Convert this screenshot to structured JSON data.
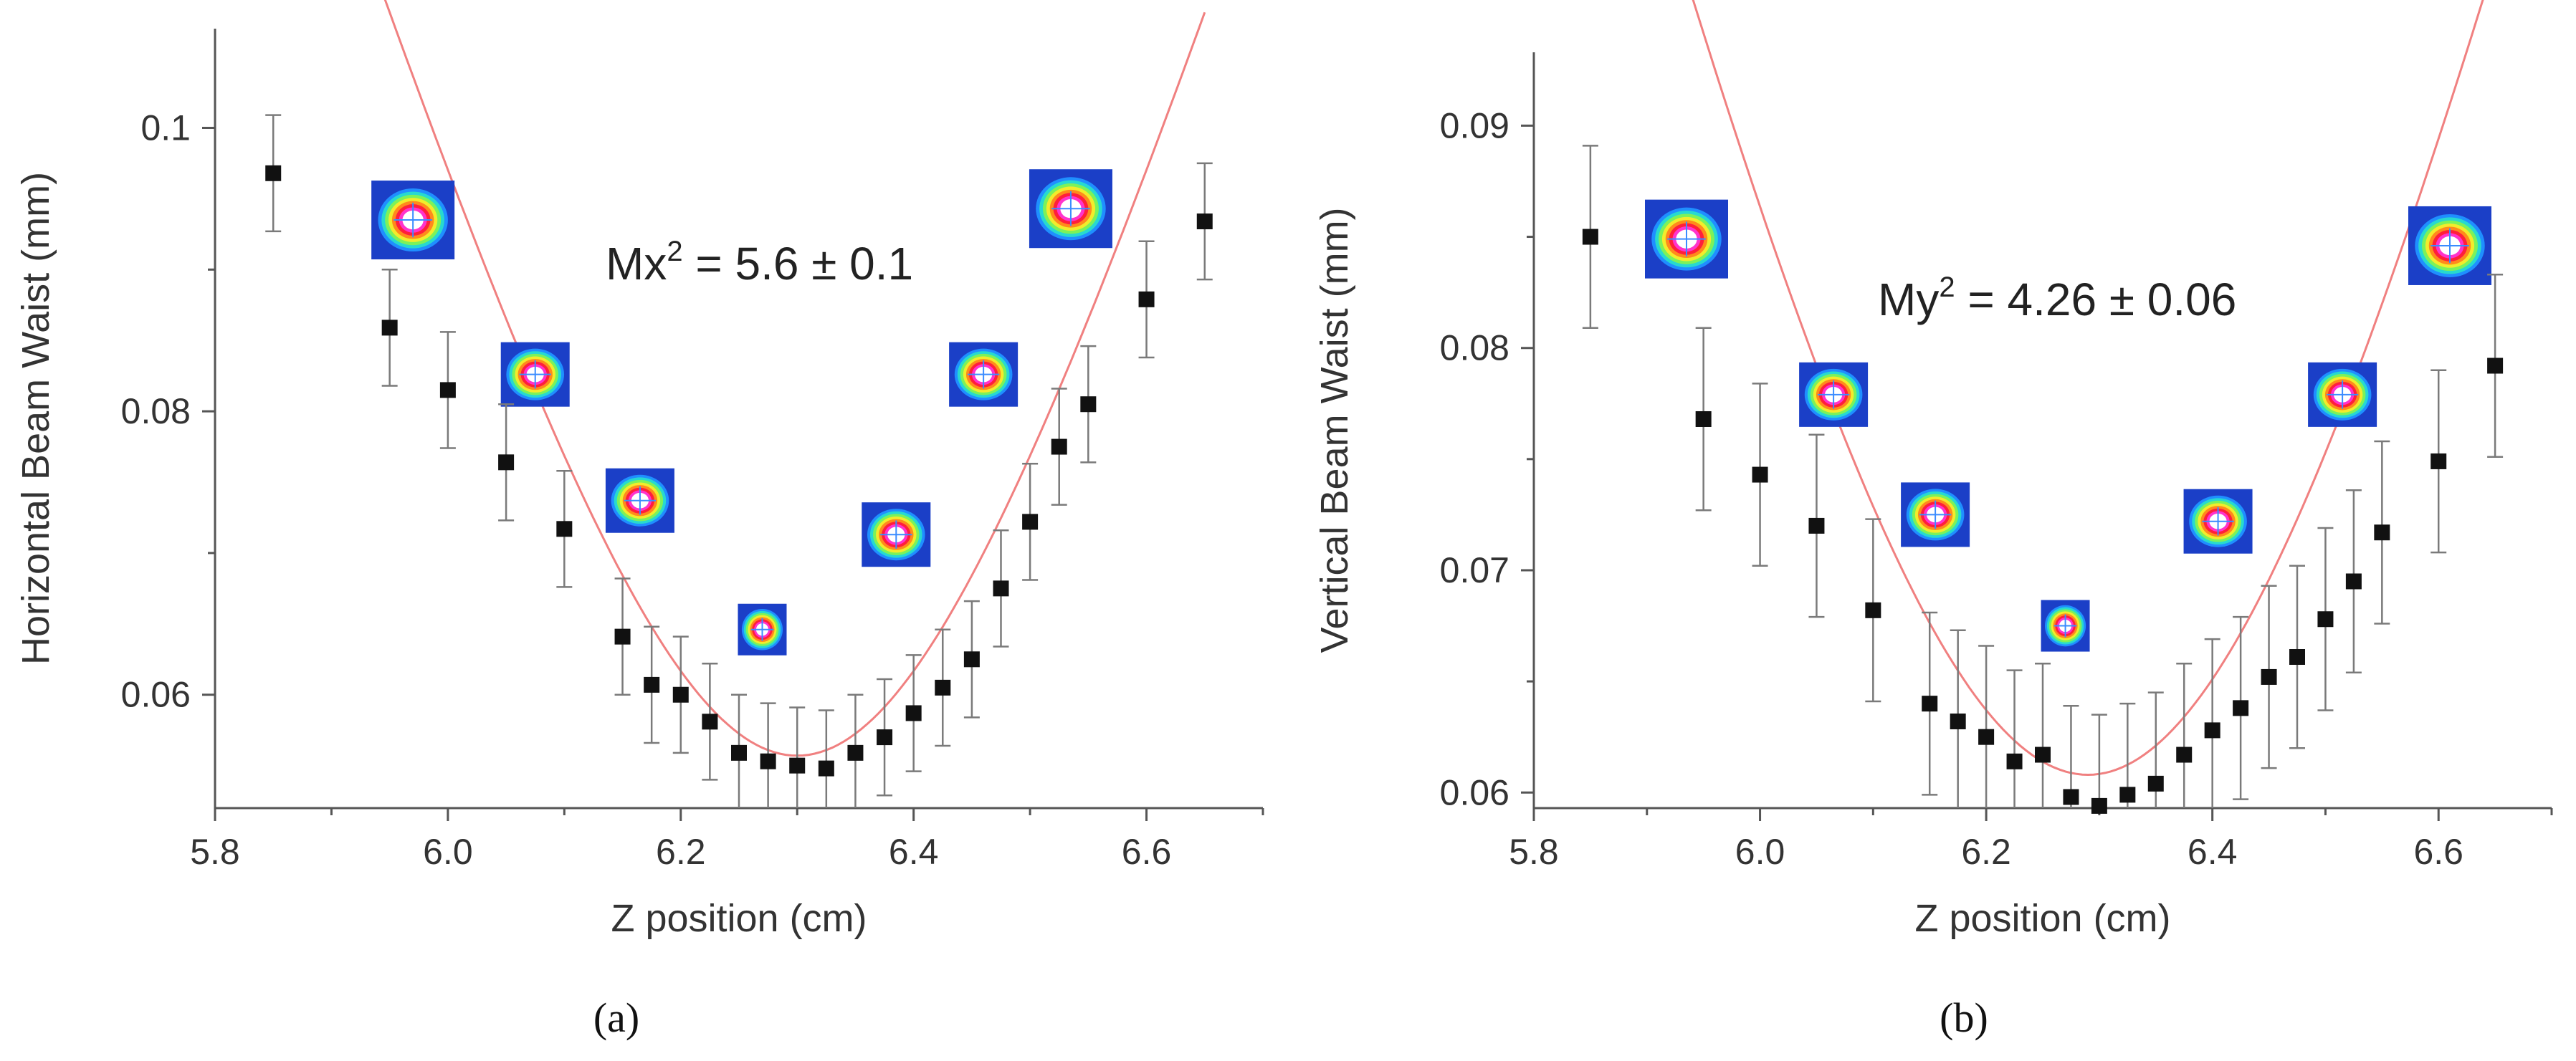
{
  "chart_data": [
    {
      "type": "scatter",
      "panel_label": "(a)",
      "title": "",
      "xlabel": "Z position (cm)",
      "ylabel": "Horizontal Beam Waist (mm)",
      "annotation_prefix": "Mx",
      "annotation_suffix": " = 5.6 ± 0.1",
      "annotation_sup": "2",
      "xlim": [
        5.8,
        6.7
      ],
      "ylim": [
        0.052,
        0.107
      ],
      "x_ticks": [
        5.8,
        6.0,
        6.2,
        6.4,
        6.6
      ],
      "x_ticklabels": [
        "5.8",
        "6.0",
        "6.2",
        "6.4",
        "6.6"
      ],
      "x_minor_ticks": [
        5.9,
        6.1,
        6.3,
        6.5,
        6.7
      ],
      "y_ticks": [
        0.06,
        0.08,
        0.1
      ],
      "y_ticklabels": [
        "0.06",
        "0.08",
        "0.1"
      ],
      "y_minor_ticks": [
        0.07,
        0.09
      ],
      "series": [
        {
          "name": "Measured",
          "x": [
            5.85,
            5.95,
            6.0,
            6.05,
            6.1,
            6.15,
            6.175,
            6.2,
            6.225,
            6.25,
            6.275,
            6.3,
            6.325,
            6.35,
            6.375,
            6.4,
            6.425,
            6.45,
            6.475,
            6.5,
            6.525,
            6.55,
            6.6,
            6.65
          ],
          "y": [
            0.0968,
            0.0859,
            0.0815,
            0.0764,
            0.0717,
            0.0641,
            0.0607,
            0.06,
            0.0581,
            0.0559,
            0.0553,
            0.055,
            0.0548,
            0.0559,
            0.057,
            0.0587,
            0.0605,
            0.0625,
            0.0675,
            0.0722,
            0.0775,
            0.0805,
            0.0879,
            0.0934
          ],
          "error": [
            0.0041,
            0.0041,
            0.0041,
            0.0041,
            0.0041,
            0.0041,
            0.0041,
            0.0041,
            0.0041,
            0.0041,
            0.0041,
            0.0041,
            0.0041,
            0.0041,
            0.0041,
            0.0041,
            0.0041,
            0.0041,
            0.0041,
            0.0041,
            0.0041,
            0.0041,
            0.0041,
            0.0041
          ]
        },
        {
          "name": "Fit",
          "x_range": [
            5.85,
            6.65
          ],
          "model": "hyperbolic",
          "w0": 0.0557,
          "z0": 6.3,
          "zr": 0.2103
        }
      ],
      "insets": [
        {
          "x": 5.97,
          "y": 0.0935,
          "size": "large"
        },
        {
          "x": 6.075,
          "y": 0.0826,
          "size": "medium"
        },
        {
          "x": 6.165,
          "y": 0.0737,
          "size": "medium"
        },
        {
          "x": 6.27,
          "y": 0.0646,
          "size": "small"
        },
        {
          "x": 6.385,
          "y": 0.0713,
          "size": "medium"
        },
        {
          "x": 6.46,
          "y": 0.0826,
          "size": "medium"
        },
        {
          "x": 6.535,
          "y": 0.0943,
          "size": "large"
        }
      ]
    },
    {
      "type": "scatter",
      "panel_label": "(b)",
      "title": "",
      "xlabel": "Z position (cm)",
      "ylabel": "Vertical Beam Waist (mm)",
      "annotation_prefix": "My",
      "annotation_suffix": " = 4.26 ± 0.06",
      "annotation_sup": "2",
      "xlim": [
        5.8,
        6.7
      ],
      "ylim": [
        0.0593,
        0.0933
      ],
      "x_ticks": [
        5.8,
        6.0,
        6.2,
        6.4,
        6.6
      ],
      "x_ticklabels": [
        "5.8",
        "6.0",
        "6.2",
        "6.4",
        "6.6"
      ],
      "x_minor_ticks": [
        5.9,
        6.1,
        6.3,
        6.5,
        6.7
      ],
      "y_ticks": [
        0.06,
        0.07,
        0.08,
        0.09
      ],
      "y_ticklabels": [
        "0.06",
        "0.07",
        "0.08",
        "0.09"
      ],
      "y_minor_ticks": [
        0.065,
        0.075,
        0.085
      ],
      "series": [
        {
          "name": "Measured",
          "x": [
            5.85,
            5.95,
            6.0,
            6.05,
            6.1,
            6.15,
            6.175,
            6.2,
            6.225,
            6.25,
            6.275,
            6.3,
            6.325,
            6.35,
            6.375,
            6.4,
            6.425,
            6.45,
            6.475,
            6.5,
            6.525,
            6.55,
            6.6,
            6.65
          ],
          "y": [
            0.085,
            0.0768,
            0.0743,
            0.072,
            0.0682,
            0.064,
            0.0632,
            0.0625,
            0.0614,
            0.0617,
            0.0598,
            0.0594,
            0.0599,
            0.0604,
            0.0617,
            0.0628,
            0.0638,
            0.0652,
            0.0661,
            0.0678,
            0.0695,
            0.0717,
            0.0749,
            0.0792
          ],
          "error": [
            0.0041,
            0.0041,
            0.0041,
            0.0041,
            0.0041,
            0.0041,
            0.0041,
            0.0041,
            0.0041,
            0.0041,
            0.0041,
            0.0041,
            0.0041,
            0.0041,
            0.0041,
            0.0041,
            0.0041,
            0.0041,
            0.0041,
            0.0041,
            0.0041,
            0.0041,
            0.0041,
            0.0041
          ]
        },
        {
          "name": "Fit",
          "x_range": [
            5.85,
            6.65
          ],
          "model": "hyperbolic",
          "w0": 0.0608,
          "z0": 6.29,
          "zr": 0.2875
        }
      ],
      "insets": [
        {
          "x": 5.935,
          "y": 0.0849,
          "size": "large"
        },
        {
          "x": 6.065,
          "y": 0.0779,
          "size": "medium"
        },
        {
          "x": 6.155,
          "y": 0.0725,
          "size": "medium"
        },
        {
          "x": 6.27,
          "y": 0.0675,
          "size": "small"
        },
        {
          "x": 6.405,
          "y": 0.0722,
          "size": "medium"
        },
        {
          "x": 6.515,
          "y": 0.0779,
          "size": "medium"
        },
        {
          "x": 6.61,
          "y": 0.0846,
          "size": "large"
        }
      ]
    }
  ],
  "colors": {
    "axis": "#555555",
    "marker": "#111111",
    "errorbar": "#7a7a7a",
    "fit": "#f08080",
    "beam_background": "#1b3fc7",
    "beam_rings": [
      "#1f8fff",
      "#27d9d0",
      "#7cf25a",
      "#f2ec2c",
      "#ff8a1c",
      "#ff1f3a",
      "#ff33cc"
    ],
    "beam_core": "#ffffff",
    "beam_crosshair": "#3a8cff"
  }
}
